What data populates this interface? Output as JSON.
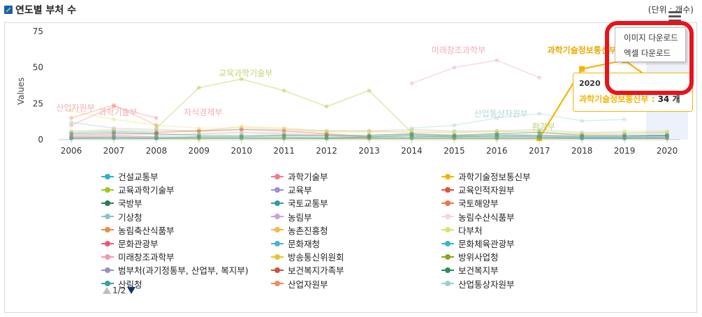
{
  "header": {
    "title": "연도별 부처 수",
    "unit": "(단위 : 개수)"
  },
  "menu": {
    "items": [
      "이미지 다운로드",
      "엑셀 다운로드"
    ]
  },
  "tooltip": {
    "year": "2020",
    "series": "과학기술정보통신부",
    "value": "34 개"
  },
  "pager": {
    "text": "1/2"
  },
  "colors": {
    "accent": "#f5b400",
    "highlight": "#e8141c",
    "pager_active": "#13317a"
  },
  "chart_data": {
    "type": "line",
    "xlabel": "",
    "ylabel": "Values",
    "ylim": [
      0,
      75
    ],
    "yticks": [
      "0",
      "25",
      "50",
      "75"
    ],
    "x": [
      "2006",
      "2007",
      "2008",
      "2009",
      "2010",
      "2011",
      "2012",
      "2013",
      "2014",
      "2015",
      "2016",
      "2017",
      "2018",
      "2019",
      "2020"
    ],
    "series": [
      {
        "name": "건설교통부",
        "color": "#2bb3c9",
        "values": [
          5,
          6,
          5,
          null,
          null,
          null,
          null,
          null,
          null,
          null,
          null,
          null,
          null,
          null,
          null
        ],
        "strong": false
      },
      {
        "name": "과학기술부",
        "color": "#f07c8c",
        "values": [
          10,
          23,
          15,
          null,
          null,
          null,
          null,
          null,
          null,
          null,
          null,
          null,
          null,
          null,
          null
        ],
        "strong": false
      },
      {
        "name": "과학기술정보통신부",
        "color": "#f5b400",
        "values": [
          null,
          null,
          null,
          null,
          null,
          null,
          null,
          null,
          null,
          null,
          null,
          1,
          49,
          55,
          34
        ],
        "strong": true
      },
      {
        "name": "교육과학기술부",
        "color": "#a7c41f",
        "values": [
          null,
          null,
          8,
          36,
          42,
          34,
          23,
          34,
          5,
          null,
          null,
          null,
          null,
          null,
          null
        ],
        "strong": false
      },
      {
        "name": "교육부",
        "color": "#9c8fd6",
        "values": [
          null,
          null,
          null,
          null,
          null,
          null,
          null,
          null,
          2,
          3,
          2,
          3,
          2,
          2,
          2
        ],
        "strong": false
      },
      {
        "name": "교육인적자원부",
        "color": "#e0533a",
        "values": [
          3,
          4,
          4,
          null,
          null,
          null,
          null,
          null,
          null,
          null,
          null,
          null,
          null,
          null,
          null
        ],
        "strong": false
      },
      {
        "name": "국방부",
        "color": "#2a7d54",
        "values": [
          1,
          1,
          1,
          1,
          1,
          1,
          1,
          1,
          1,
          1,
          1,
          1,
          1,
          1,
          1
        ],
        "strong": false
      },
      {
        "name": "국토교통부",
        "color": "#2f9aa8",
        "values": [
          null,
          null,
          null,
          null,
          null,
          null,
          null,
          2,
          3,
          2,
          3,
          2,
          2,
          2,
          3
        ],
        "strong": false
      },
      {
        "name": "국토해양부",
        "color": "#f0734a",
        "values": [
          null,
          null,
          3,
          4,
          5,
          4,
          3,
          1,
          null,
          null,
          null,
          null,
          null,
          null,
          null
        ],
        "strong": false
      },
      {
        "name": "기상청",
        "color": "#8fc3c9",
        "values": [
          12,
          8,
          7,
          6,
          7,
          7,
          6,
          6,
          7,
          6,
          6,
          7,
          5,
          5,
          5
        ],
        "strong": false
      },
      {
        "name": "농림부",
        "color": "#c8a3e0",
        "values": [
          2,
          2,
          2,
          null,
          null,
          null,
          null,
          null,
          null,
          null,
          null,
          null,
          null,
          null,
          null
        ],
        "strong": false
      },
      {
        "name": "농림수산식품부",
        "color": "#f7d6d6",
        "values": [
          null,
          null,
          3,
          4,
          5,
          5,
          4,
          2,
          null,
          null,
          null,
          null,
          null,
          null,
          null
        ],
        "strong": false
      },
      {
        "name": "농림축산식품부",
        "color": "#f08a4a",
        "values": [
          null,
          null,
          null,
          null,
          null,
          null,
          null,
          3,
          4,
          3,
          4,
          3,
          3,
          3,
          3
        ],
        "strong": false
      },
      {
        "name": "농촌진흥청",
        "color": "#f7b94a",
        "values": [
          6,
          7,
          6,
          6,
          9,
          8,
          6,
          6,
          5,
          5,
          6,
          5,
          4,
          4,
          5
        ],
        "strong": false
      },
      {
        "name": "다부처",
        "color": "#e3e06a",
        "values": [
          20,
          14,
          10,
          8,
          8,
          7,
          5,
          5,
          6,
          5,
          5,
          6,
          4,
          6,
          6
        ],
        "strong": false
      },
      {
        "name": "문화관광부",
        "color": "#e65a7a",
        "values": [
          2,
          3,
          2,
          null,
          null,
          null,
          null,
          null,
          null,
          null,
          null,
          null,
          null,
          null,
          null
        ],
        "strong": false
      },
      {
        "name": "문화재청",
        "color": "#4ab3d6",
        "values": [
          1,
          1,
          1,
          1,
          1,
          1,
          1,
          1,
          1,
          1,
          1,
          1,
          1,
          1,
          1
        ],
        "strong": false
      },
      {
        "name": "문화체육관광부",
        "color": "#35b7c8",
        "values": [
          null,
          null,
          2,
          2,
          2,
          3,
          2,
          2,
          3,
          2,
          3,
          3,
          2,
          2,
          3
        ],
        "strong": false
      },
      {
        "name": "미래창조과학부",
        "color": "#f29aab",
        "values": [
          null,
          null,
          null,
          null,
          null,
          null,
          null,
          null,
          39,
          50,
          55,
          43,
          null,
          null,
          null
        ],
        "strong": false
      },
      {
        "name": "방송통신위원회",
        "color": "#e8c22a",
        "values": [
          null,
          null,
          1,
          1,
          1,
          1,
          1,
          1,
          1,
          1,
          1,
          1,
          1,
          1,
          1
        ],
        "strong": false
      },
      {
        "name": "방위사업청",
        "color": "#8aa51e",
        "values": [
          1,
          1,
          1,
          1,
          1,
          1,
          1,
          1,
          1,
          1,
          1,
          1,
          1,
          1,
          1
        ],
        "strong": false
      },
      {
        "name": "범부처(과기정통부, 산업부, 복지부)",
        "color": "#9a8ec4",
        "values": [
          null,
          null,
          null,
          null,
          null,
          null,
          null,
          null,
          null,
          null,
          null,
          null,
          1,
          1,
          1
        ],
        "strong": false
      },
      {
        "name": "보건복지가족부",
        "color": "#d0503a",
        "values": [
          null,
          null,
          5,
          6,
          7,
          6,
          4,
          2,
          null,
          null,
          null,
          null,
          null,
          null,
          null
        ],
        "strong": false
      },
      {
        "name": "보건복지부",
        "color": "#2f8a5e",
        "values": [
          4,
          5,
          4,
          3,
          3,
          3,
          3,
          3,
          4,
          3,
          4,
          5,
          3,
          3,
          3
        ],
        "strong": false
      },
      {
        "name": "산림청",
        "color": "#3aa0a8",
        "values": [
          1,
          2,
          1,
          2,
          2,
          2,
          1,
          2,
          2,
          2,
          2,
          2,
          1,
          1,
          2
        ],
        "strong": false
      },
      {
        "name": "산업자원부",
        "color": "#f28a5a",
        "values": [
          15,
          24,
          10,
          null,
          null,
          null,
          null,
          null,
          null,
          null,
          null,
          null,
          null,
          null,
          null
        ],
        "strong": false
      },
      {
        "name": "산업통상자원부",
        "color": "#9ad0cf",
        "values": [
          null,
          null,
          null,
          null,
          null,
          null,
          null,
          null,
          8,
          10,
          15,
          18,
          13,
          14,
          null
        ],
        "strong": false
      }
    ],
    "annotations": [
      {
        "text": "산업자원부",
        "year": "2006",
        "value": 20
      },
      {
        "text": "과학기술부",
        "year": "2007",
        "value": 17
      },
      {
        "text": "자식경제부",
        "year": "2009",
        "value": 17
      },
      {
        "text": "교육과학기술부",
        "year": "2010",
        "value": 44
      },
      {
        "text": "미래창조과학부",
        "year": "2015",
        "value": 60
      },
      {
        "text": "산업통상자원부",
        "year": "2016",
        "value": 16
      },
      {
        "text": "환경부",
        "year": "2017",
        "value": 7
      },
      {
        "text": "과학기술정보통신부",
        "year": "2018",
        "value": 60
      }
    ],
    "grid": false,
    "legend_position": "bottom"
  }
}
